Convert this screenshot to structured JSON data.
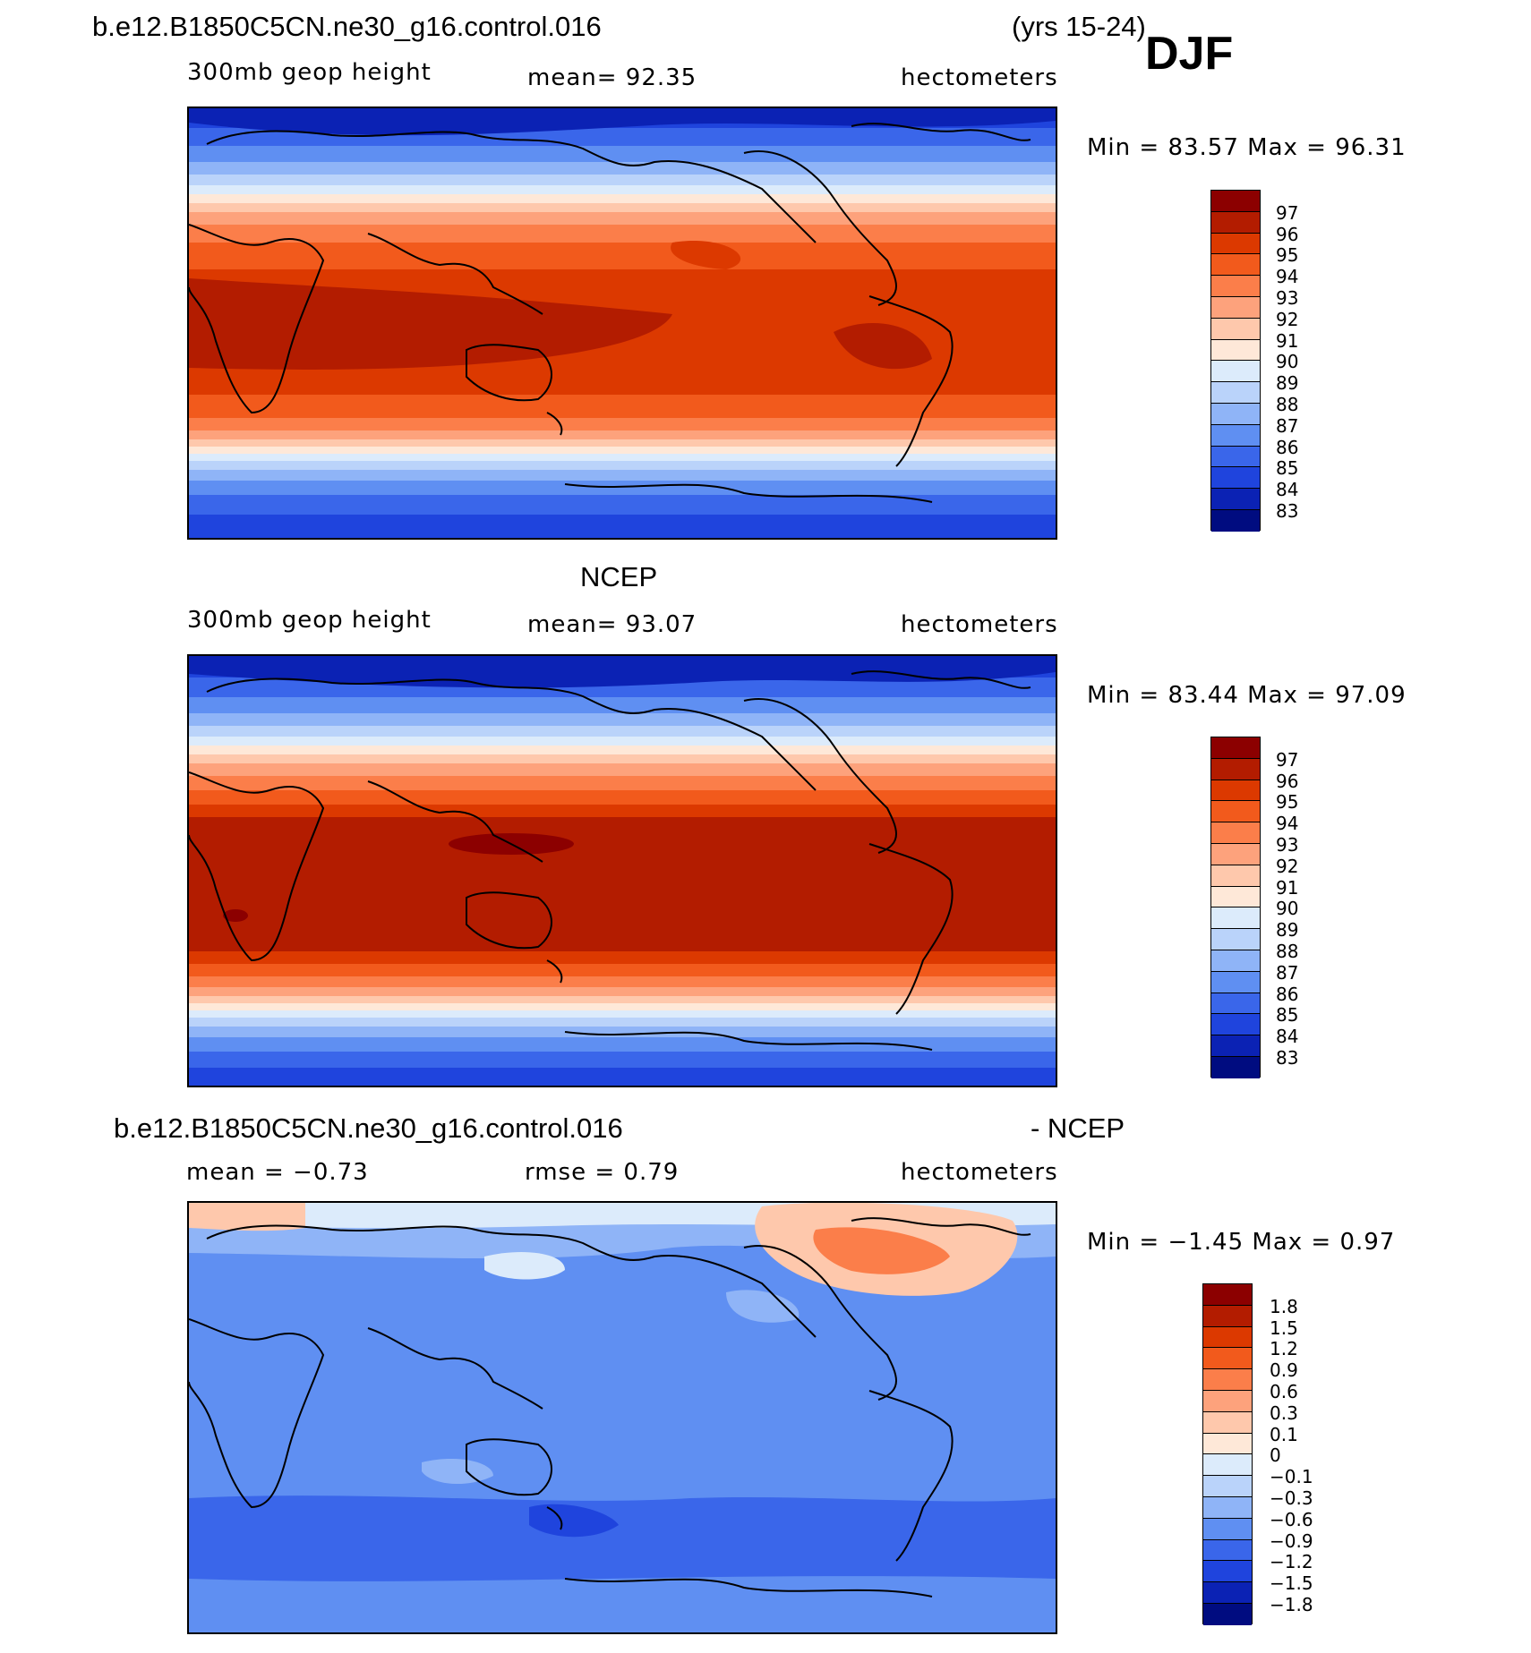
{
  "header": {
    "case_name": "b.e12.B1850C5CN.ne30_g16.control.016",
    "years": "(yrs 15-24)",
    "season": "DJF"
  },
  "panels": [
    {
      "id": "model",
      "title": "",
      "variable": "300mb geop height",
      "stat": "mean=  92.35",
      "units": "hectometers",
      "minmax": "Min =  83.57 Max =  96.31",
      "legend_labels": [
        "97",
        "96",
        "95",
        "94",
        "93",
        "92",
        "91",
        "90",
        "89",
        "88",
        "87",
        "86",
        "85",
        "84",
        "83"
      ],
      "legend_colors": [
        "#8c0000",
        "#b31c00",
        "#dc3900",
        "#f25a1c",
        "#fb7e4a",
        "#fda27c",
        "#fec8ac",
        "#fee8d8",
        "#dcebfb",
        "#bad3fa",
        "#8fb4f7",
        "#5f8ff2",
        "#3a66ea",
        "#1f44dd",
        "#0b22b4",
        "#000c80"
      ]
    },
    {
      "id": "obs",
      "title": "NCEP",
      "variable": "300mb geop height",
      "stat": "mean=  93.07",
      "units": "hectometers",
      "minmax": "Min =  83.44 Max =  97.09",
      "legend_labels": [
        "97",
        "96",
        "95",
        "94",
        "93",
        "92",
        "91",
        "90",
        "89",
        "88",
        "87",
        "86",
        "85",
        "84",
        "83"
      ],
      "legend_colors": [
        "#8c0000",
        "#b31c00",
        "#dc3900",
        "#f25a1c",
        "#fb7e4a",
        "#fda27c",
        "#fec8ac",
        "#fee8d8",
        "#dcebfb",
        "#bad3fa",
        "#8fb4f7",
        "#5f8ff2",
        "#3a66ea",
        "#1f44dd",
        "#0b22b4",
        "#000c80"
      ]
    },
    {
      "id": "diff",
      "title_left": "b.e12.B1850C5CN.ne30_g16.control.016",
      "title_right": "- NCEP",
      "stat_left": "mean =  −0.73",
      "stat_mid": "rmse =   0.79",
      "units": "hectometers",
      "minmax": "Min =  −1.45 Max =   0.97",
      "legend_labels": [
        "1.8",
        "1.5",
        "1.2",
        "0.9",
        "0.6",
        "0.3",
        "0.1",
        "0",
        "−0.1",
        "−0.3",
        "−0.6",
        "−0.9",
        "−1.2",
        "−1.5",
        "−1.8"
      ],
      "legend_colors": [
        "#8c0000",
        "#b31c00",
        "#dc3900",
        "#f25a1c",
        "#fb7e4a",
        "#fda27c",
        "#fec8ac",
        "#fee8d8",
        "#dcebfb",
        "#bad3fa",
        "#8fb4f7",
        "#5f8ff2",
        "#3a66ea",
        "#1f44dd",
        "#0b22b4",
        "#000c80"
      ]
    }
  ]
}
